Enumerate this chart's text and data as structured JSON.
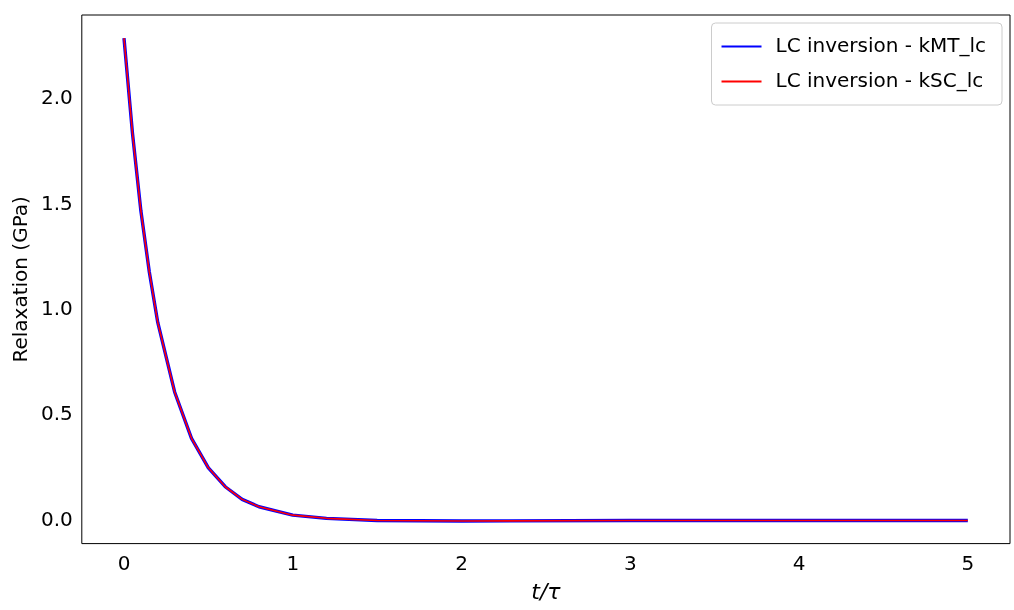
{
  "chart_data": {
    "type": "line",
    "xlabel": "t/τ",
    "ylabel": "Relaxation (GPa)",
    "x": [
      0,
      0.05,
      0.1,
      0.15,
      0.2,
      0.3,
      0.4,
      0.5,
      0.6,
      0.7,
      0.8,
      1,
      1.2,
      1.5,
      2,
      3,
      4,
      5
    ],
    "series": [
      {
        "name": "LC inversion - kMT_lc",
        "color": "#0000ff",
        "values": [
          2.29,
          1.84,
          1.47,
          1.18,
          0.94,
          0.61,
          0.39,
          0.25,
          0.16,
          0.1,
          0.065,
          0.025,
          0.01,
          0,
          -0.003,
          0,
          0,
          0
        ]
      },
      {
        "name": "LC inversion - kSC_lc",
        "color": "#ff0000",
        "values": [
          2.29,
          1.84,
          1.47,
          1.18,
          0.94,
          0.61,
          0.39,
          0.25,
          0.16,
          0.1,
          0.065,
          0.025,
          0.01,
          0,
          -0.003,
          0,
          0,
          0
        ]
      }
    ],
    "xlim": [
      -0.25,
      5.25
    ],
    "xticks": [
      0,
      1,
      2,
      3,
      4,
      5
    ],
    "ylim": [
      -0.11,
      2.4
    ],
    "yticks": [
      {
        "value": 0,
        "label": "0.0"
      },
      {
        "value": 0.5,
        "label": "0.5"
      },
      {
        "value": 1,
        "label": "1.0"
      },
      {
        "value": 1.5,
        "label": "1.5"
      },
      {
        "value": 2,
        "label": "2.0"
      }
    ],
    "grid": false,
    "legend": "top right",
    "marker": "none",
    "line_style": "solid"
  }
}
